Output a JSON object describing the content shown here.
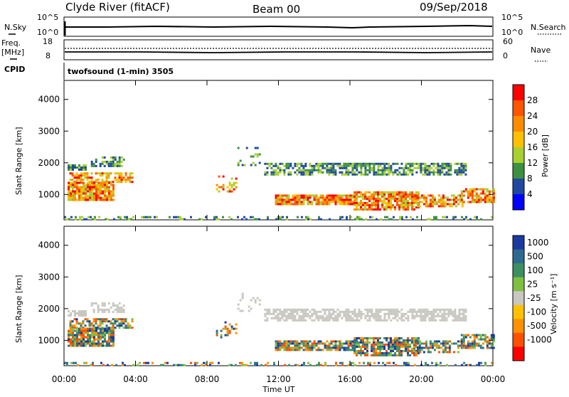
{
  "header": {
    "station": "Clyde River (fitACF)",
    "beam": "Beam 00",
    "date": "09/Sep/2018"
  },
  "strip_labels": {
    "nsky_label": "N.Sky",
    "nsky_ticks": [
      "10^5",
      "10^0"
    ],
    "nsearch_label": "N.Search",
    "nsearch_ticks": [
      "10^5",
      "10^0"
    ],
    "freq_label_1": "Freq.",
    "freq_label_2": "[MHz]",
    "freq_ticks": [
      "18",
      "8"
    ],
    "nave_label": "Nave",
    "nave_ticks": [
      "60",
      "0"
    ],
    "cpid_label": "CPID",
    "cpid_text": "twofsound (1-min) 3505"
  },
  "chart_data": [
    {
      "type": "heatmap",
      "name": "power",
      "ylabel": "Slant Range [km]",
      "y_ticks": [
        1000,
        2000,
        3000,
        4000
      ],
      "ylim": [
        200,
        4600
      ],
      "x_ticks": [
        "00:00",
        "04:00",
        "08:00",
        "12:00",
        "16:00",
        "20:00",
        "00:00"
      ],
      "xlim_hours": [
        0,
        24
      ],
      "colorbar_label": "Power [dB]",
      "colorbar_ticks": [
        "28",
        "24",
        "20",
        "16",
        "12",
        "8",
        "4"
      ],
      "colorbar_colors": [
        "#ff0000",
        "#ff5500",
        "#ff8c00",
        "#ffc000",
        "#a8d030",
        "#3c9040",
        "#2048a0",
        "#0000ff"
      ]
    },
    {
      "type": "heatmap",
      "name": "velocity",
      "ylabel": "Slant Range [km]",
      "y_ticks": [
        1000,
        2000,
        3000,
        4000
      ],
      "ylim": [
        200,
        4600
      ],
      "x_ticks": [
        "00:00",
        "04:00",
        "08:00",
        "12:00",
        "16:00",
        "20:00",
        "00:00"
      ],
      "xlim_hours": [
        0,
        24
      ],
      "xlabel": "Time UT",
      "colorbar_label": "Velocity [m s⁻¹]",
      "colorbar_ticks": [
        "1000",
        "500",
        "100",
        "25",
        "-25",
        "-100",
        "-500",
        "-1000"
      ],
      "colorbar_colors": [
        "#1a3aa0",
        "#2e6a90",
        "#3c9060",
        "#80c040",
        "#c8c8c0",
        "#ffc000",
        "#ff9000",
        "#ff5000",
        "#ff0000"
      ]
    }
  ],
  "colors": {
    "gray_ground": "#c8c8c0",
    "power_low": "#2048a0",
    "power_high": "#ff0000"
  }
}
